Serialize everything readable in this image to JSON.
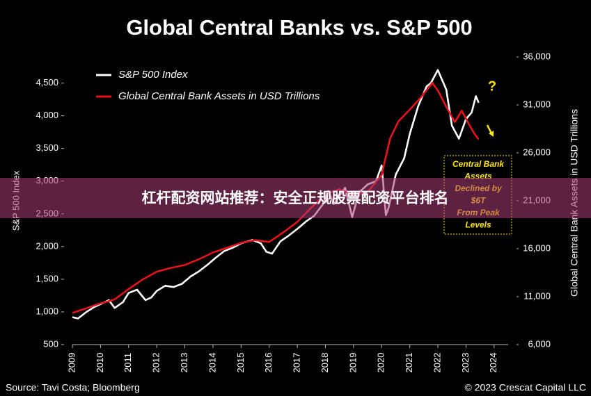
{
  "chart_data": {
    "type": "line",
    "title": "Global Central Banks vs. S&P 500",
    "ylabel": "S&P 500 Index",
    "y2label": "Global Central Bank Assets in USD Trillions",
    "xlim": [
      2009,
      2024.5
    ],
    "xticks": [
      2009,
      2010,
      2011,
      2012,
      2013,
      2014,
      2015,
      2016,
      2017,
      2018,
      2019,
      2020,
      2021,
      2022,
      2023,
      2024
    ],
    "ylim": [
      500,
      4900
    ],
    "yticks": [
      500,
      {
        "value": 1000,
        "label": "1,000"
      },
      {
        "value": 1500,
        "label": "1,500"
      },
      {
        "value": 2000,
        "label": "2,000"
      },
      {
        "value": 2500,
        "label": "2,500"
      },
      {
        "value": 3000,
        "label": "3,000"
      },
      {
        "value": 3500,
        "label": "3,500"
      },
      {
        "value": 4000,
        "label": "4,000"
      },
      {
        "value": 4500,
        "label": "4,500"
      }
    ],
    "y2lim": [
      6000,
      36000
    ],
    "y2ticks": [
      {
        "value": 6000,
        "label": "6,000"
      },
      {
        "value": 11000,
        "label": "11,000"
      },
      {
        "value": 16000,
        "label": "16,000"
      },
      {
        "value": 21000,
        "label": "21,000"
      },
      {
        "value": 26000,
        "label": "26,000"
      },
      {
        "value": 31000,
        "label": "31,000"
      },
      {
        "value": 36000,
        "label": "36,000"
      }
    ],
    "legend": "upper left",
    "series": [
      {
        "name": "S&P 500 Index",
        "color": "#ffffff",
        "x": [
          2009.0,
          2009.2,
          2009.5,
          2009.8,
          2010.0,
          2010.3,
          2010.5,
          2010.8,
          2011.0,
          2011.3,
          2011.6,
          2011.8,
          2012.0,
          2012.3,
          2012.6,
          2012.9,
          2013.2,
          2013.5,
          2013.8,
          2014.1,
          2014.4,
          2014.7,
          2015.0,
          2015.4,
          2015.7,
          2015.9,
          2016.1,
          2016.4,
          2016.7,
          2017.0,
          2017.3,
          2017.6,
          2017.9,
          2018.1,
          2018.3,
          2018.7,
          2018.95,
          2019.2,
          2019.5,
          2019.8,
          2020.0,
          2020.15,
          2020.25,
          2020.5,
          2020.8,
          2021.0,
          2021.3,
          2021.6,
          2021.75,
          2022.0,
          2022.3,
          2022.5,
          2022.75,
          2023.0,
          2023.2,
          2023.35,
          2023.45
        ],
        "values": [
          920,
          900,
          1000,
          1080,
          1120,
          1180,
          1060,
          1150,
          1290,
          1340,
          1180,
          1220,
          1320,
          1400,
          1380,
          1430,
          1540,
          1620,
          1720,
          1830,
          1930,
          1980,
          2050,
          2100,
          2050,
          1920,
          1890,
          2080,
          2170,
          2270,
          2380,
          2470,
          2640,
          2850,
          2650,
          2900,
          2450,
          2830,
          2950,
          3000,
          3240,
          2480,
          2600,
          3100,
          3350,
          3720,
          4150,
          4450,
          4500,
          4700,
          4400,
          3850,
          3650,
          3950,
          4050,
          4300,
          4200
        ]
      },
      {
        "name": "Global Central Bank Assets in USD Trillions",
        "color": "#e8141b",
        "axis": "y2",
        "x": [
          2009.0,
          2009.5,
          2010.0,
          2010.5,
          2011.0,
          2011.5,
          2012.0,
          2012.5,
          2013.0,
          2013.5,
          2014.0,
          2014.5,
          2015.0,
          2015.5,
          2016.0,
          2016.5,
          2017.0,
          2017.5,
          2018.0,
          2018.5,
          2019.0,
          2019.5,
          2020.0,
          2020.3,
          2020.6,
          2021.0,
          2021.4,
          2021.8,
          2022.0,
          2022.3,
          2022.6,
          2022.85,
          2023.1,
          2023.3,
          2023.45
        ],
        "values": [
          9300,
          9800,
          10300,
          10700,
          11800,
          12800,
          13600,
          14000,
          14300,
          14900,
          15600,
          16100,
          16600,
          16900,
          16700,
          17700,
          18800,
          20300,
          21700,
          22200,
          21600,
          21900,
          23700,
          27500,
          29300,
          30500,
          31800,
          33300,
          32500,
          30800,
          29200,
          30400,
          29000,
          28000,
          27400
        ]
      }
    ],
    "annotations": [
      "?",
      "Central Bank",
      "Assets",
      "Declined by",
      "$6T",
      "From Peak",
      "Levels"
    ],
    "source": "Source: Tavi Costa; Bloomberg",
    "credit": "© 2023 Crescat Capital LLC"
  },
  "overlay": {
    "text": "杠杆配资网站推荐：安全正规股票配资平台排名"
  }
}
